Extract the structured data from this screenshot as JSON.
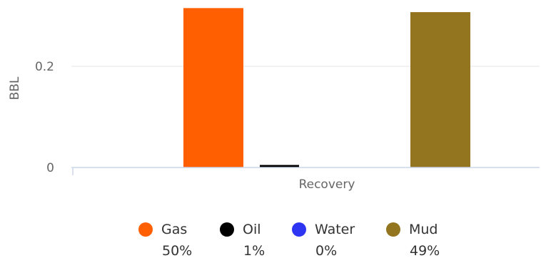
{
  "chart_data": {
    "type": "bar",
    "title": "",
    "xlabel": "",
    "ylabel": "BBL",
    "category_label": "Recovery",
    "ylim": [
      0,
      0.32
    ],
    "yticks": [
      0,
      0.2
    ],
    "ytick_labels": [
      "0",
      "0.2"
    ],
    "grid": true,
    "legend_position": "bottom",
    "series": [
      {
        "name": "Gas",
        "value": 0.315,
        "percent": "50%",
        "color": "#ff5f00"
      },
      {
        "name": "Oil",
        "value": 0.005,
        "percent": "1%",
        "color": "#000000"
      },
      {
        "name": "Water",
        "value": 0.0,
        "percent": "0%",
        "color": "#2e35f2"
      },
      {
        "name": "Mud",
        "value": 0.307,
        "percent": "49%",
        "color": "#93741f"
      }
    ]
  }
}
